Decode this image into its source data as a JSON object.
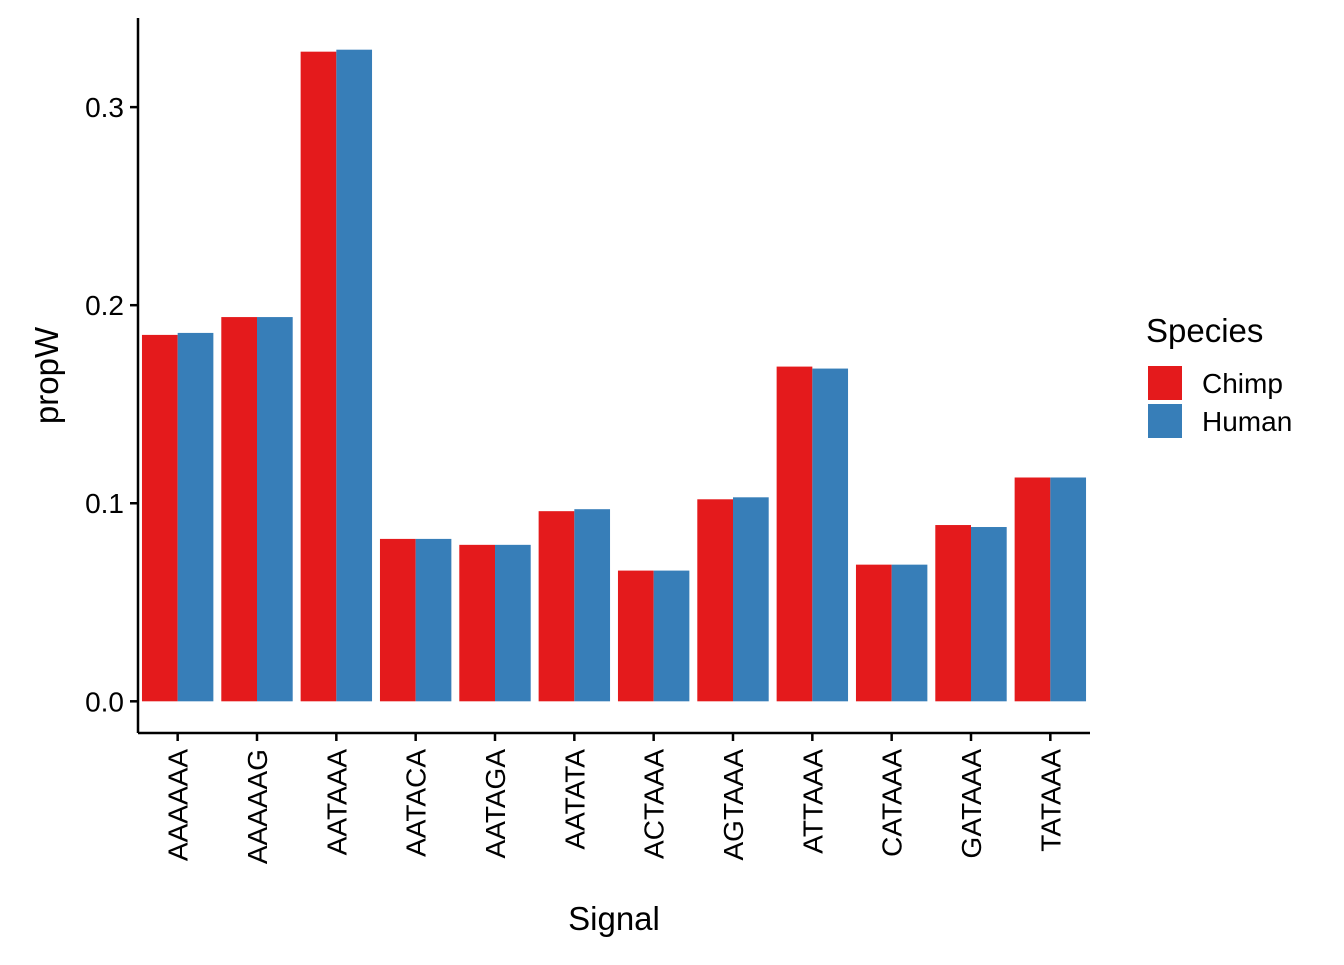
{
  "chart_data": {
    "type": "bar",
    "xlabel": "Signal",
    "ylabel": "propW",
    "ylim": [
      -0.016,
      0.345
    ],
    "yticks": [
      0.0,
      0.1,
      0.2,
      0.3
    ],
    "ytick_labels": [
      "0.0",
      "0.1",
      "0.2",
      "0.3"
    ],
    "grid": false,
    "legend": {
      "title": "Species",
      "placement": "right"
    },
    "categories": [
      "AAAAAA",
      "AAAAAG",
      "AATAAA",
      "AATACA",
      "AATAGA",
      "AATATA",
      "ACTAAA",
      "AGTAAA",
      "ATTAAA",
      "CATAAA",
      "GATAAA",
      "TATAAA"
    ],
    "series": [
      {
        "name": "Chimp",
        "color": "#E41A1C",
        "values": [
          0.185,
          0.194,
          0.328,
          0.082,
          0.079,
          0.096,
          0.066,
          0.102,
          0.169,
          0.069,
          0.089,
          0.113
        ]
      },
      {
        "name": "Human",
        "color": "#377EB8",
        "values": [
          0.186,
          0.194,
          0.329,
          0.082,
          0.079,
          0.097,
          0.066,
          0.103,
          0.168,
          0.069,
          0.088,
          0.113
        ]
      }
    ]
  }
}
